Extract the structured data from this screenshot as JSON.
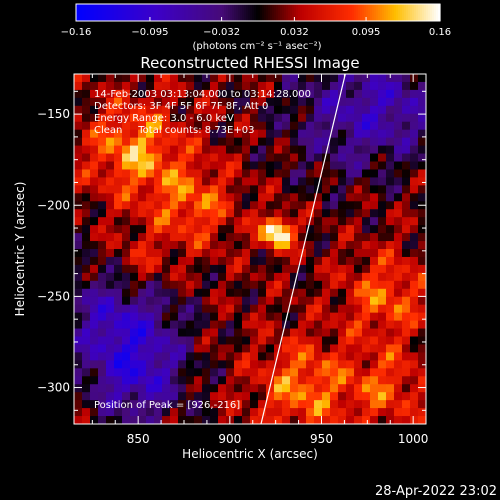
{
  "chart_data": {
    "type": "heatmap",
    "title": "Reconstructed RHESSI Image",
    "xlabel": "Heliocentric X (arcsec)",
    "ylabel": "Heliocentric Y (arcsec)",
    "xlim": [
      815,
      1007
    ],
    "ylim": [
      -320,
      -128
    ],
    "xticks": [
      850,
      900,
      950,
      1000
    ],
    "yticks": [
      -150,
      -200,
      -250,
      -300
    ],
    "colorbar": {
      "min": -0.16,
      "max": 0.16,
      "tick_values": [
        -0.16,
        -0.095,
        -0.032,
        0.032,
        0.095,
        0.16
      ],
      "tick_labels": [
        "-0.16",
        "-0.095",
        "-0.032",
        "0.032",
        "0.095",
        "0.16"
      ],
      "label": "(photons cm⁻² s⁻¹ asec⁻²)"
    },
    "annotations": [
      "14-Feb-2003 03:13:04.000 to 03:14:28.000",
      "Detectors: 3F 4F 5F 6F 7F 8F, Att 0",
      "Energy Range: 3.0 - 6.0 keV",
      "Clean     Total counts: 8.73E+03"
    ],
    "peak": {
      "x": 926,
      "y": -216,
      "label": "Position of Peak = [926,-216]"
    },
    "limb_line": [
      [
        917,
        -320
      ],
      [
        963,
        -128
      ]
    ],
    "sources": [
      {
        "x": 926,
        "y": -215,
        "amp": 0.16,
        "sigma": 6
      },
      {
        "x": 848,
        "y": -170,
        "amp": 0.09,
        "sigma": 18
      },
      {
        "x": 880,
        "y": -200,
        "amp": 0.07,
        "sigma": 16
      },
      {
        "x": 850,
        "y": -235,
        "amp": 0.06,
        "sigma": 14
      },
      {
        "x": 985,
        "y": -250,
        "amp": 0.07,
        "sigma": 16
      },
      {
        "x": 940,
        "y": -300,
        "amp": 0.08,
        "sigma": 18
      },
      {
        "x": 985,
        "y": -300,
        "amp": 0.06,
        "sigma": 15
      },
      {
        "x": 840,
        "y": -260,
        "amp": -0.1,
        "sigma": 22
      },
      {
        "x": 850,
        "y": -295,
        "amp": -0.09,
        "sigma": 18
      },
      {
        "x": 965,
        "y": -150,
        "amp": -0.07,
        "sigma": 25
      },
      {
        "x": 995,
        "y": -145,
        "amp": -0.05,
        "sigma": 18
      }
    ],
    "background": 0.02
  },
  "footer": {
    "timestamp": "28-Apr-2022 23:02"
  }
}
